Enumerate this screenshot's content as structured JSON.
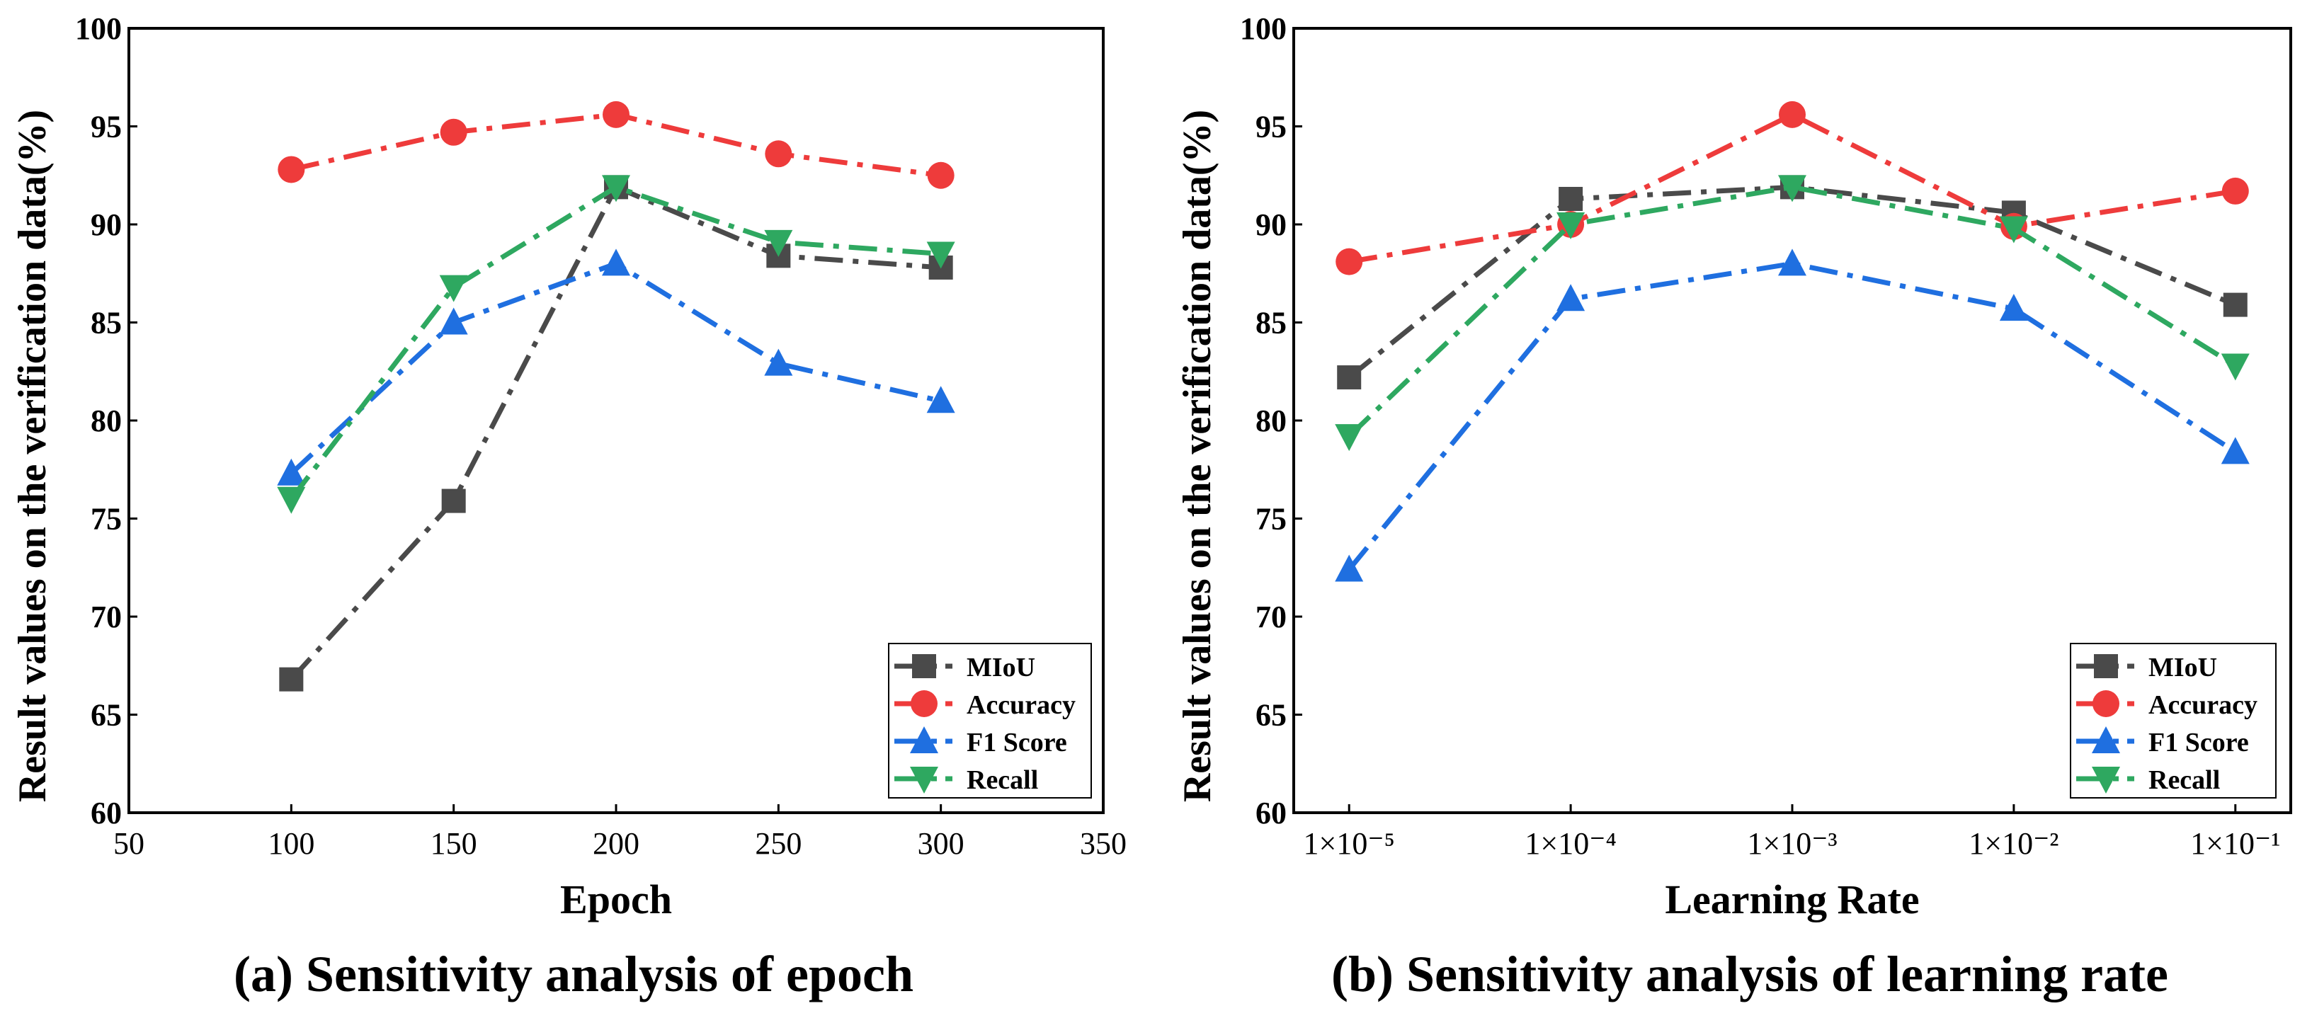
{
  "colors": {
    "MIoU": "#4a4a4a",
    "Accuracy": "#ee3b3b",
    "F1 Score": "#1f6fe0",
    "Recall": "#2ea860"
  },
  "chart_data": [
    {
      "type": "line",
      "title": "(a) Sensitivity analysis of epoch",
      "xlabel": "Epoch",
      "ylabel": "Result values on the verification data(%)",
      "x": [
        100,
        150,
        200,
        250,
        300
      ],
      "xlim": [
        50,
        350
      ],
      "xticks": [
        50,
        100,
        150,
        200,
        250,
        300,
        350
      ],
      "xtick_labels": [
        "50",
        "100",
        "150",
        "200",
        "250",
        "300",
        "350"
      ],
      "ylim": [
        60,
        100
      ],
      "yticks": [
        60,
        65,
        70,
        75,
        80,
        85,
        90,
        95,
        100
      ],
      "legend_position": "bottom-right",
      "grid": false,
      "series": [
        {
          "name": "MIoU",
          "marker": "square",
          "values": [
            66.8,
            75.9,
            91.9,
            88.4,
            87.8
          ]
        },
        {
          "name": "Accuracy",
          "marker": "circle",
          "values": [
            92.8,
            94.7,
            95.6,
            93.6,
            92.5
          ]
        },
        {
          "name": "F1 Score",
          "marker": "triangle-up",
          "values": [
            77.3,
            85.0,
            88.0,
            82.9,
            81.0
          ]
        },
        {
          "name": "Recall",
          "marker": "triangle-down",
          "values": [
            76.0,
            86.8,
            91.9,
            89.1,
            88.5
          ]
        }
      ]
    },
    {
      "type": "line",
      "title": "(b) Sensitivity analysis of learning rate",
      "xlabel": "Learning Rate",
      "ylabel": "Result values on the verification data(%)",
      "x": [
        1,
        2,
        3,
        4,
        5
      ],
      "xlim": [
        0.75,
        5.25
      ],
      "xticks": [
        1,
        2,
        3,
        4,
        5
      ],
      "xtick_labels": [
        "1×10⁻⁵",
        "1×10⁻⁴",
        "1×10⁻³",
        "1×10⁻²",
        "1×10⁻¹"
      ],
      "ylim": [
        60,
        100
      ],
      "yticks": [
        60,
        65,
        70,
        75,
        80,
        85,
        90,
        95,
        100
      ],
      "legend_position": "bottom-right",
      "grid": false,
      "series": [
        {
          "name": "MIoU",
          "marker": "square",
          "values": [
            82.2,
            91.3,
            91.9,
            90.6,
            85.9
          ]
        },
        {
          "name": "Accuracy",
          "marker": "circle",
          "values": [
            88.1,
            90.0,
            95.6,
            89.9,
            91.7
          ]
        },
        {
          "name": "F1 Score",
          "marker": "triangle-up",
          "values": [
            72.4,
            86.2,
            88.0,
            85.7,
            78.4
          ]
        },
        {
          "name": "Recall",
          "marker": "triangle-down",
          "values": [
            79.2,
            90.0,
            91.9,
            89.8,
            82.8
          ]
        }
      ]
    }
  ]
}
